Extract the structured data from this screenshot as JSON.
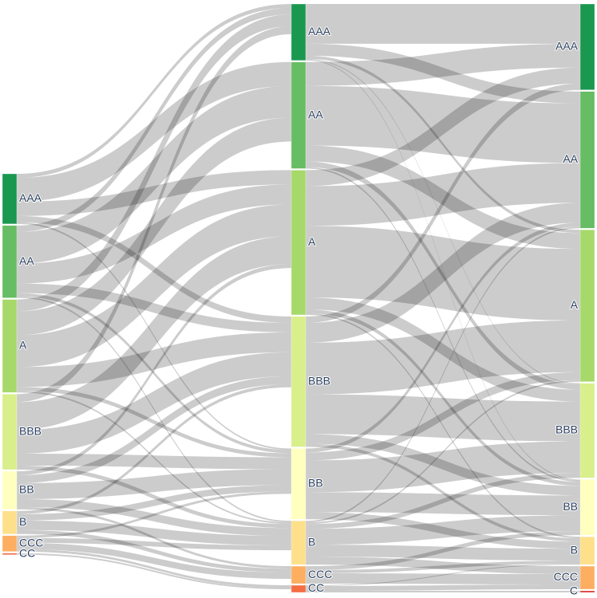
{
  "chart_data": {
    "type": "sankey",
    "nodes": [
      {
        "label": "AAA",
        "color": "#1a9850"
      },
      {
        "label": "AA",
        "color": "#66bd63"
      },
      {
        "label": "A",
        "color": "#a6d96a"
      },
      {
        "label": "BBB",
        "color": "#d9ef8b"
      },
      {
        "label": "BB",
        "color": "#ffffbf"
      },
      {
        "label": "B",
        "color": "#fee08b"
      },
      {
        "label": "CCC",
        "color": "#fdae61"
      },
      {
        "label": "CC",
        "color": "#f46d43"
      },
      {
        "label": "AAA",
        "color": "#1a9850"
      },
      {
        "label": "AA",
        "color": "#66bd63"
      },
      {
        "label": "A",
        "color": "#a6d96a"
      },
      {
        "label": "BBB",
        "color": "#d9ef8b"
      },
      {
        "label": "BB",
        "color": "#ffffbf"
      },
      {
        "label": "B",
        "color": "#fee08b"
      },
      {
        "label": "CCC",
        "color": "#fdae61"
      },
      {
        "label": "CC",
        "color": "#f46d43"
      },
      {
        "label": "AAA",
        "color": "#1a9850"
      },
      {
        "label": "AA",
        "color": "#66bd63"
      },
      {
        "label": "A",
        "color": "#a6d96a"
      },
      {
        "label": "BBB",
        "color": "#d9ef8b"
      },
      {
        "label": "BB",
        "color": "#ffffbf"
      },
      {
        "label": "B",
        "color": "#fee08b"
      },
      {
        "label": "CCC",
        "color": "#fdae61"
      },
      {
        "label": "C",
        "color": "#d73027"
      }
    ],
    "link_color": "rgba(0,0,0,0.2)",
    "links": [
      {
        "source": 0,
        "target": 8,
        "value": 5
      },
      {
        "source": 0,
        "target": 9,
        "value": 30
      },
      {
        "source": 0,
        "target": 10,
        "value": 18
      },
      {
        "source": 0,
        "target": 11,
        "value": 8
      },
      {
        "source": 0,
        "target": 12,
        "value": 2
      },
      {
        "source": 1,
        "target": 8,
        "value": 8
      },
      {
        "source": 1,
        "target": 9,
        "value": 40
      },
      {
        "source": 1,
        "target": 10,
        "value": 25
      },
      {
        "source": 1,
        "target": 11,
        "value": 12
      },
      {
        "source": 1,
        "target": 12,
        "value": 4
      },
      {
        "source": 1,
        "target": 13,
        "value": 2
      },
      {
        "source": 2,
        "target": 8,
        "value": 15
      },
      {
        "source": 2,
        "target": 9,
        "value": 30
      },
      {
        "source": 2,
        "target": 10,
        "value": 40
      },
      {
        "source": 2,
        "target": 11,
        "value": 25
      },
      {
        "source": 2,
        "target": 12,
        "value": 5
      },
      {
        "source": 2,
        "target": 13,
        "value": 2
      },
      {
        "source": 3,
        "target": 8,
        "value": 10
      },
      {
        "source": 3,
        "target": 10,
        "value": 35
      },
      {
        "source": 3,
        "target": 11,
        "value": 30
      },
      {
        "source": 3,
        "target": 12,
        "value": 15
      },
      {
        "source": 3,
        "target": 13,
        "value": 5
      },
      {
        "source": 4,
        "target": 10,
        "value": 5
      },
      {
        "source": 4,
        "target": 11,
        "value": 10
      },
      {
        "source": 4,
        "target": 12,
        "value": 20
      },
      {
        "source": 4,
        "target": 13,
        "value": 10
      },
      {
        "source": 4,
        "target": 14,
        "value": 3
      },
      {
        "source": 5,
        "target": 11,
        "value": 4
      },
      {
        "source": 5,
        "target": 12,
        "value": 8
      },
      {
        "source": 5,
        "target": 13,
        "value": 12
      },
      {
        "source": 5,
        "target": 14,
        "value": 5
      },
      {
        "source": 6,
        "target": 12,
        "value": 3
      },
      {
        "source": 6,
        "target": 13,
        "value": 6
      },
      {
        "source": 6,
        "target": 14,
        "value": 8
      },
      {
        "source": 6,
        "target": 15,
        "value": 3
      },
      {
        "source": 7,
        "target": 15,
        "value": 2
      },
      {
        "source": 8,
        "target": 16,
        "value": 50
      },
      {
        "source": 8,
        "target": 17,
        "value": 15
      },
      {
        "source": 8,
        "target": 18,
        "value": 4
      },
      {
        "source": 8,
        "target": 19,
        "value": 1
      },
      {
        "source": 8,
        "target": 20,
        "value": 1
      },
      {
        "source": 9,
        "target": 16,
        "value": 30
      },
      {
        "source": 9,
        "target": 17,
        "value": 75
      },
      {
        "source": 9,
        "target": 18,
        "value": 20
      },
      {
        "source": 9,
        "target": 19,
        "value": 7
      },
      {
        "source": 9,
        "target": 20,
        "value": 2
      },
      {
        "source": 10,
        "target": 16,
        "value": 20
      },
      {
        "source": 10,
        "target": 17,
        "value": 50
      },
      {
        "source": 10,
        "target": 18,
        "value": 90
      },
      {
        "source": 10,
        "target": 19,
        "value": 15
      },
      {
        "source": 10,
        "target": 20,
        "value": 5
      },
      {
        "source": 10,
        "target": 21,
        "value": 2
      },
      {
        "source": 11,
        "target": 16,
        "value": 8
      },
      {
        "source": 11,
        "target": 17,
        "value": 25
      },
      {
        "source": 11,
        "target": 18,
        "value": 65
      },
      {
        "source": 11,
        "target": 19,
        "value": 50
      },
      {
        "source": 11,
        "target": 20,
        "value": 12
      },
      {
        "source": 11,
        "target": 21,
        "value": 4
      },
      {
        "source": 12,
        "target": 17,
        "value": 5
      },
      {
        "source": 12,
        "target": 18,
        "value": 10
      },
      {
        "source": 12,
        "target": 19,
        "value": 40
      },
      {
        "source": 12,
        "target": 20,
        "value": 25
      },
      {
        "source": 12,
        "target": 21,
        "value": 9
      },
      {
        "source": 13,
        "target": 17,
        "value": 2
      },
      {
        "source": 13,
        "target": 18,
        "value": 2
      },
      {
        "source": 13,
        "target": 19,
        "value": 6
      },
      {
        "source": 13,
        "target": 20,
        "value": 20
      },
      {
        "source": 13,
        "target": 21,
        "value": 15
      },
      {
        "source": 13,
        "target": 22,
        "value": 10
      },
      {
        "source": 14,
        "target": 20,
        "value": 5
      },
      {
        "source": 14,
        "target": 21,
        "value": 4
      },
      {
        "source": 14,
        "target": 22,
        "value": 13
      },
      {
        "source": 15,
        "target": 21,
        "value": 1
      },
      {
        "source": 15,
        "target": 22,
        "value": 6
      },
      {
        "source": 15,
        "target": 23,
        "value": 2
      }
    ]
  }
}
